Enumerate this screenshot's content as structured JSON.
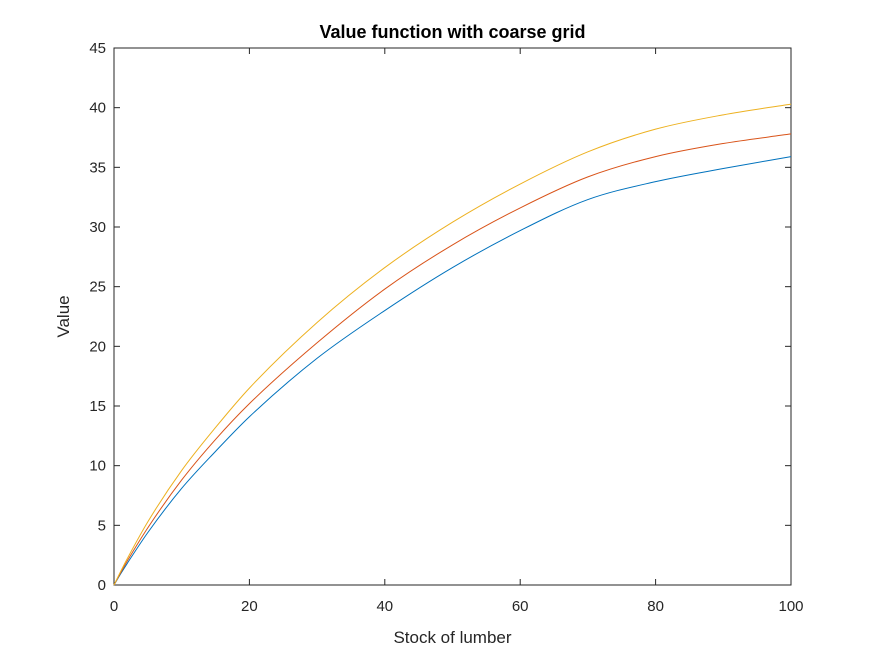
{
  "chart_data": {
    "type": "line",
    "title": "Value function with coarse grid",
    "xlabel": "Stock of lumber",
    "ylabel": "Value",
    "xlim": [
      0,
      100
    ],
    "ylim": [
      0,
      45
    ],
    "xticks": [
      "0",
      "20",
      "40",
      "60",
      "80",
      "100"
    ],
    "yticks": [
      "0",
      "5",
      "10",
      "15",
      "20",
      "25",
      "30",
      "35",
      "40",
      "45"
    ],
    "grid": false,
    "legend": "none",
    "x": [
      0,
      1,
      2,
      5,
      10,
      15,
      20,
      30,
      40,
      50,
      60,
      70,
      80,
      90,
      100
    ],
    "series": [
      {
        "color": "#0072BD",
        "values": [
          0,
          0.95,
          1.85,
          4.4,
          8.1,
          11.2,
          14.1,
          19.0,
          23.0,
          26.6,
          29.7,
          32.3,
          33.8,
          34.9,
          35.9
        ]
      },
      {
        "color": "#D95319",
        "values": [
          0,
          1.05,
          2.05,
          4.8,
          8.8,
          12.2,
          15.2,
          20.3,
          24.8,
          28.5,
          31.6,
          34.2,
          35.9,
          37.0,
          37.8
        ]
      },
      {
        "color": "#EDB120",
        "values": [
          0,
          1.15,
          2.25,
          5.3,
          9.6,
          13.2,
          16.5,
          22.0,
          26.6,
          30.4,
          33.6,
          36.3,
          38.2,
          39.4,
          40.3
        ]
      }
    ]
  }
}
